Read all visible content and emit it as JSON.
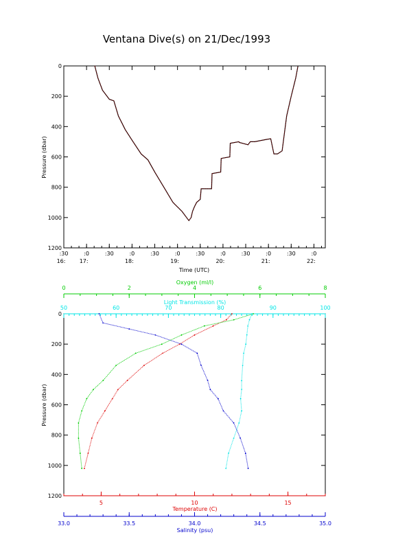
{
  "title": "Ventana Dive(s) on 21/Dec/1993",
  "colors": {
    "axis": "#000000",
    "temperature": "#dd0000",
    "salinity": "#0000cc",
    "oxygen": "#00cc00",
    "transmission": "#00e5e5",
    "depth_trace": "#000000",
    "depth_trace_overlay": "#cc0000"
  },
  "chart_data": [
    {
      "type": "line",
      "title": "Ventana Dive(s) on 21/Dec/1993",
      "xlabel": "Time (UTC)",
      "ylabel": "Pressure (dbar)",
      "x_ticks": [
        {
          "minute": ":30",
          "hour": "16:"
        },
        {
          "minute": ":0",
          "hour": "17:"
        },
        {
          "minute": ":30",
          "hour": ""
        },
        {
          "minute": ":0",
          "hour": "18:"
        },
        {
          "minute": ":30",
          "hour": ""
        },
        {
          "minute": ":0",
          "hour": "19:"
        },
        {
          "minute": ":30",
          "hour": ""
        },
        {
          "minute": ":0",
          "hour": "20:"
        },
        {
          "minute": ":30",
          "hour": ""
        },
        {
          "minute": ":0",
          "hour": "21:"
        },
        {
          "minute": ":30",
          "hour": ""
        },
        {
          "minute": ":0",
          "hour": "22:"
        }
      ],
      "xlim_hours": [
        16.5,
        22.25
      ],
      "ylim": [
        1200,
        0
      ],
      "y_ticks": [
        0,
        200,
        400,
        600,
        800,
        1000,
        1200
      ],
      "grid": false,
      "series": [
        {
          "x_hours": [
            17.18,
            17.25,
            17.35,
            17.5,
            17.6,
            17.7,
            17.85,
            18.0,
            18.2,
            18.35,
            18.5,
            18.7,
            18.9,
            19.1,
            19.25,
            19.3,
            19.33,
            19.37,
            19.42,
            19.5,
            19.52,
            19.75,
            19.76,
            19.95,
            19.96,
            20.15,
            20.16,
            20.35,
            20.36,
            20.55,
            20.6,
            20.7,
            20.95,
            21.05,
            21.12,
            21.2,
            21.3,
            21.4,
            21.5,
            21.6,
            21.65
          ],
          "pressure": [
            0,
            80,
            160,
            220,
            230,
            330,
            420,
            490,
            580,
            620,
            700,
            800,
            900,
            960,
            1020,
            1000,
            960,
            930,
            900,
            880,
            810,
            810,
            710,
            700,
            610,
            600,
            510,
            500,
            505,
            520,
            500,
            500,
            485,
            480,
            580,
            580,
            560,
            330,
            200,
            80,
            0
          ]
        }
      ]
    },
    {
      "type": "scatter",
      "ylabel": "Pressure (dbar)",
      "ylim": [
        1200,
        0
      ],
      "y_ticks": [
        0,
        200,
        400,
        600,
        800,
        1000,
        1200
      ],
      "axes": {
        "oxygen": {
          "label": "Oxygen (ml/l)",
          "ticks": [
            0,
            2,
            4,
            6,
            8
          ],
          "lim": [
            0,
            8
          ]
        },
        "transmission": {
          "label": "Light Transmission (%)",
          "ticks": [
            50,
            60,
            70,
            80,
            90,
            100
          ],
          "lim": [
            50,
            100
          ]
        },
        "temperature": {
          "label": "Temperature (C)",
          "ticks": [
            5,
            10,
            15
          ],
          "lim": [
            3.0,
            17.0
          ]
        },
        "salinity": {
          "label": "Salinity (psu)",
          "ticks": [
            "33.0",
            "33.5",
            "34.0",
            "34.5",
            "35.0"
          ],
          "lim": [
            33.0,
            35.0
          ]
        }
      },
      "series": [
        {
          "name": "Temperature (C)",
          "axis": "temperature",
          "x": [
            12.0,
            11.7,
            11.0,
            10.0,
            9.2,
            8.3,
            7.3,
            6.4,
            5.9,
            5.6,
            5.2,
            4.8,
            4.5,
            4.3,
            4.1
          ],
          "pressure": [
            0,
            40,
            80,
            140,
            200,
            260,
            340,
            440,
            500,
            560,
            640,
            720,
            820,
            920,
            1020
          ]
        },
        {
          "name": "Salinity (psu)",
          "axis": "salinity",
          "x": [
            33.27,
            33.3,
            33.5,
            33.7,
            33.9,
            34.02,
            34.05,
            34.1,
            34.12,
            34.18,
            34.22,
            34.3,
            34.35,
            34.39,
            34.41
          ],
          "pressure": [
            0,
            60,
            100,
            140,
            200,
            260,
            340,
            440,
            500,
            560,
            640,
            720,
            820,
            920,
            1020
          ]
        },
        {
          "name": "Oxygen (ml/l)",
          "axis": "oxygen",
          "x": [
            5.8,
            5.2,
            4.3,
            3.6,
            3.0,
            2.2,
            1.6,
            1.2,
            0.9,
            0.7,
            0.55,
            0.45,
            0.45,
            0.5,
            0.55
          ],
          "pressure": [
            0,
            40,
            80,
            140,
            200,
            260,
            340,
            440,
            500,
            560,
            640,
            720,
            820,
            920,
            1020
          ]
        },
        {
          "name": "Light Transmission (%)",
          "axis": "transmission",
          "x": [
            86.0,
            85.5,
            85.2,
            85.0,
            84.8,
            84.4,
            84.2,
            84.0,
            84.0,
            83.8,
            84.0,
            83.5,
            82.5,
            81.5,
            81.0
          ],
          "pressure": [
            0,
            40,
            80,
            140,
            200,
            260,
            340,
            440,
            500,
            560,
            640,
            720,
            820,
            920,
            1020
          ]
        }
      ]
    }
  ]
}
